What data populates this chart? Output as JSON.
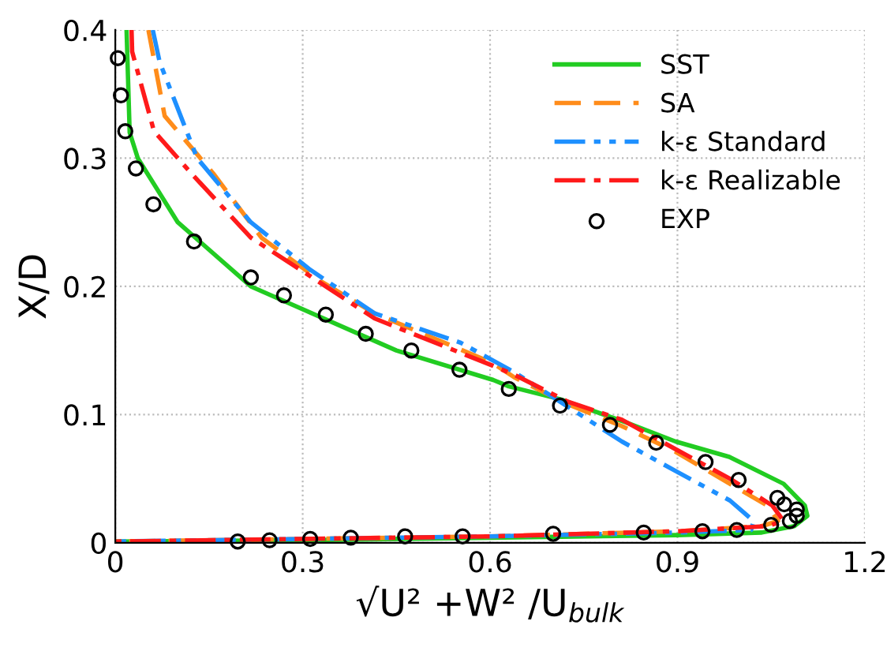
{
  "chart_data": {
    "type": "line",
    "xlabel": "√U² +W² /U$_{bulk}$",
    "ylabel": "X/D",
    "xlim": [
      0,
      1.2
    ],
    "xticks": [
      0,
      0.3,
      0.6,
      0.9,
      1.2
    ],
    "ylim": [
      0,
      0.4
    ],
    "yticks": [
      0,
      0.1,
      0.2,
      0.3,
      0.4
    ],
    "grid": true,
    "legend": "top right",
    "series": [
      {
        "name": "SST",
        "color": "#22cc22",
        "line_style": "solid",
        "x": [
          0.018,
          0.023,
          0.036,
          0.1,
          0.217,
          0.45,
          0.605,
          0.63,
          0.712,
          0.817,
          0.897,
          0.983,
          1.07,
          1.104,
          1.108,
          1.087,
          1.035,
          0.9,
          0.6,
          0.3,
          0.0
        ],
        "values": [
          0.4,
          0.32,
          0.3,
          0.25,
          0.2,
          0.15,
          0.127,
          0.122,
          0.112,
          0.094,
          0.079,
          0.067,
          0.046,
          0.029,
          0.021,
          0.013,
          0.008,
          0.006,
          0.004,
          0.002,
          0.001
        ]
      },
      {
        "name": "SA",
        "color": "#ff8c1a",
        "line_style": "dashed",
        "x": [
          0.053,
          0.079,
          0.157,
          0.234,
          0.329,
          0.415,
          0.605,
          0.639,
          0.725,
          0.811,
          0.897,
          0.984,
          1.044,
          1.061,
          1.035,
          0.9,
          0.6,
          0.3,
          0.0
        ],
        "values": [
          0.4,
          0.333,
          0.288,
          0.238,
          0.204,
          0.179,
          0.14,
          0.129,
          0.108,
          0.091,
          0.071,
          0.046,
          0.029,
          0.017,
          0.013,
          0.009,
          0.005,
          0.003,
          0.001
        ]
      },
      {
        "name": "k-ε Standard",
        "color": "#1e90ff",
        "line_style": "dashdotdot",
        "x": [
          0.06,
          0.071,
          0.131,
          0.217,
          0.312,
          0.415,
          0.553,
          0.639,
          0.725,
          0.811,
          0.897,
          0.984,
          1.022,
          1.018,
          0.9,
          0.6,
          0.3,
          0.0
        ],
        "values": [
          0.4,
          0.375,
          0.3,
          0.25,
          0.213,
          0.179,
          0.156,
          0.133,
          0.106,
          0.079,
          0.056,
          0.033,
          0.017,
          0.01,
          0.008,
          0.005,
          0.003,
          0.001
        ]
      },
      {
        "name": "k-ε Realizable",
        "color": "#ff1a1a",
        "line_style": "dashdot",
        "x": [
          0.026,
          0.027,
          0.062,
          0.122,
          0.217,
          0.312,
          0.415,
          0.605,
          0.639,
          0.725,
          0.811,
          0.897,
          0.984,
          1.052,
          1.07,
          1.044,
          0.9,
          0.6,
          0.3,
          0.0
        ],
        "values": [
          0.4,
          0.383,
          0.321,
          0.288,
          0.238,
          0.208,
          0.175,
          0.138,
          0.131,
          0.11,
          0.096,
          0.073,
          0.05,
          0.029,
          0.017,
          0.013,
          0.009,
          0.005,
          0.003,
          0.001
        ]
      },
      {
        "name": "EXP",
        "type": "scatter",
        "color": "#000000",
        "marker": "circle",
        "x": [
          0.004,
          0.009,
          0.016,
          0.033,
          0.061,
          0.126,
          0.217,
          0.27,
          0.337,
          0.401,
          0.474,
          0.551,
          0.63,
          0.712,
          0.792,
          0.866,
          0.945,
          0.998,
          1.06,
          1.071,
          1.091,
          1.091,
          1.08,
          1.05,
          0.995,
          0.94,
          0.846,
          0.701,
          0.556,
          0.464,
          0.377,
          0.312,
          0.247,
          0.196
        ],
        "values": [
          0.378,
          0.349,
          0.321,
          0.292,
          0.264,
          0.235,
          0.207,
          0.193,
          0.178,
          0.163,
          0.15,
          0.135,
          0.12,
          0.107,
          0.092,
          0.078,
          0.063,
          0.049,
          0.035,
          0.03,
          0.026,
          0.021,
          0.017,
          0.014,
          0.01,
          0.009,
          0.008,
          0.007,
          0.005,
          0.005,
          0.004,
          0.003,
          0.002,
          0.001
        ]
      }
    ]
  }
}
